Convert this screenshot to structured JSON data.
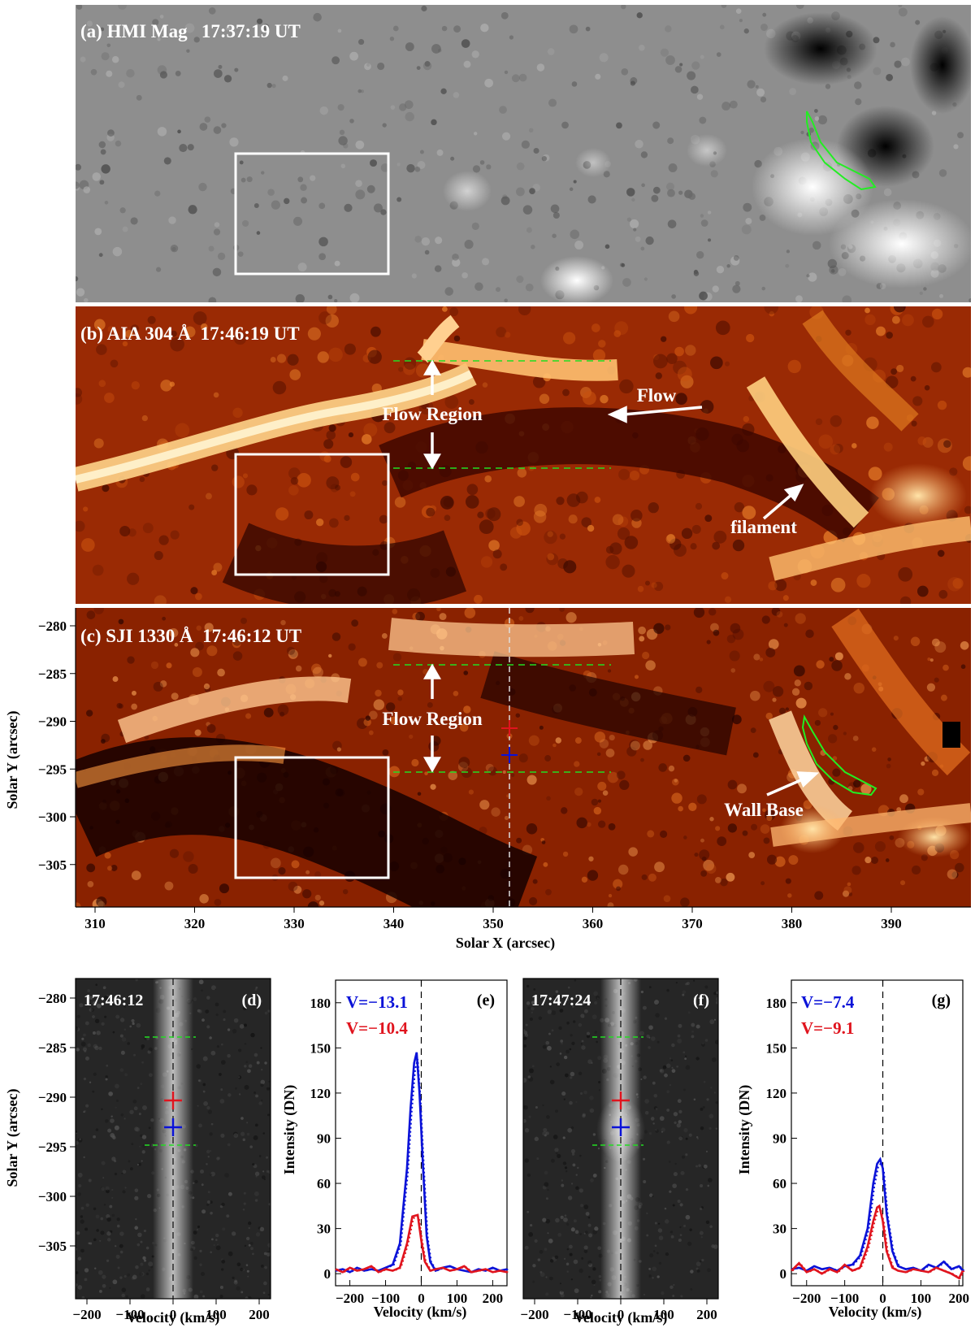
{
  "panels": {
    "a": {
      "label": "(a) HMI Mag   17:37:19 UT"
    },
    "b": {
      "label": "(b) AIA 304 Å  17:46:19 UT",
      "flow_region": "Flow Region",
      "flow": "Flow",
      "filament": "filament"
    },
    "c": {
      "label": "(c) SJI 1330 Å  17:46:12 UT",
      "flow_region": "Flow Region",
      "wall_base": "Wall Base"
    }
  },
  "axes_top": {
    "xlabel": "Solar X (arcsec)",
    "ylabel": "Solar Y (arcsec)",
    "xticks": [
      "310",
      "320",
      "330",
      "340",
      "350",
      "360",
      "370",
      "380",
      "390"
    ],
    "yticks": [
      "−280",
      "−285",
      "−290",
      "−295",
      "−300",
      "−305"
    ]
  },
  "bottom": {
    "d": {
      "time": "17:46:12",
      "tag": "(d)"
    },
    "e": {
      "tag": "(e)",
      "v_blue": "V=−13.1",
      "v_red": "V=−10.4"
    },
    "f": {
      "time": "17:47:24",
      "tag": "(f)"
    },
    "g": {
      "tag": "(g)",
      "v_blue": "V=−7.4",
      "v_red": "V=−9.1"
    },
    "ylabel_img": "Solar Y (arcsec)",
    "ylabel_plot": "Intensity (DN)",
    "xlabel": "Velocity (km/s)",
    "img_yticks": [
      "−280",
      "−285",
      "−290",
      "−295",
      "−300",
      "−305"
    ],
    "vel_ticks": [
      "−200",
      "−100",
      "0",
      "100",
      "200"
    ],
    "int_ticks": [
      "180",
      "150",
      "120",
      "90",
      "60",
      "30",
      "0"
    ]
  },
  "colors": {
    "blue": "#0a12d8",
    "red": "#e0141e",
    "green": "#22dd22"
  },
  "chart_data": [
    {
      "type": "line",
      "panel": "(e)",
      "xlabel": "Velocity (km/s)",
      "ylabel": "Intensity (DN)",
      "xlim": [
        -240,
        240
      ],
      "ylim": [
        -8,
        195
      ],
      "series": [
        {
          "color": "blue",
          "x": [
            -240,
            -220,
            -200,
            -180,
            -160,
            -140,
            -120,
            -100,
            -80,
            -60,
            -40,
            -30,
            -20,
            -13,
            -5,
            5,
            15,
            25,
            40,
            60,
            80,
            100,
            120,
            140,
            160,
            180,
            200,
            220,
            240
          ],
          "values": [
            2,
            3,
            1,
            4,
            2,
            3,
            2,
            4,
            6,
            20,
            70,
            110,
            140,
            147,
            120,
            70,
            25,
            8,
            2,
            4,
            5,
            3,
            2,
            1,
            3,
            2,
            4,
            2,
            3
          ]
        },
        {
          "color": "red",
          "x": [
            -240,
            -220,
            -200,
            -180,
            -160,
            -140,
            -120,
            -100,
            -80,
            -60,
            -40,
            -25,
            -10,
            0,
            10,
            25,
            40,
            60,
            80,
            100,
            120,
            140,
            160,
            180,
            200,
            220,
            240
          ],
          "values": [
            3,
            1,
            4,
            2,
            3,
            5,
            1,
            3,
            2,
            4,
            20,
            38,
            39,
            22,
            8,
            2,
            3,
            4,
            2,
            3,
            5,
            1,
            2,
            3,
            1,
            2,
            1
          ]
        }
      ]
    },
    {
      "type": "line",
      "panel": "(g)",
      "xlabel": "Velocity (km/s)",
      "ylabel": "Intensity (DN)",
      "xlim": [
        -240,
        210
      ],
      "ylim": [
        -8,
        195
      ],
      "series": [
        {
          "color": "blue",
          "x": [
            -240,
            -220,
            -200,
            -180,
            -160,
            -140,
            -120,
            -100,
            -80,
            -60,
            -40,
            -25,
            -15,
            -7,
            0,
            10,
            25,
            40,
            60,
            80,
            100,
            120,
            140,
            160,
            180,
            200,
            210
          ],
          "values": [
            3,
            4,
            2,
            5,
            3,
            4,
            2,
            5,
            6,
            12,
            30,
            60,
            73,
            76,
            70,
            40,
            15,
            5,
            3,
            4,
            2,
            6,
            4,
            8,
            3,
            5,
            2
          ]
        },
        {
          "color": "red",
          "x": [
            -240,
            -220,
            -200,
            -180,
            -160,
            -140,
            -120,
            -100,
            -80,
            -60,
            -40,
            -25,
            -15,
            -9,
            0,
            10,
            25,
            40,
            60,
            80,
            100,
            120,
            140,
            160,
            180,
            200,
            210
          ],
          "values": [
            2,
            7,
            1,
            3,
            0,
            3,
            1,
            6,
            2,
            4,
            18,
            35,
            44,
            45,
            35,
            15,
            4,
            2,
            1,
            3,
            2,
            1,
            4,
            2,
            0,
            -3,
            2
          ]
        }
      ]
    }
  ]
}
